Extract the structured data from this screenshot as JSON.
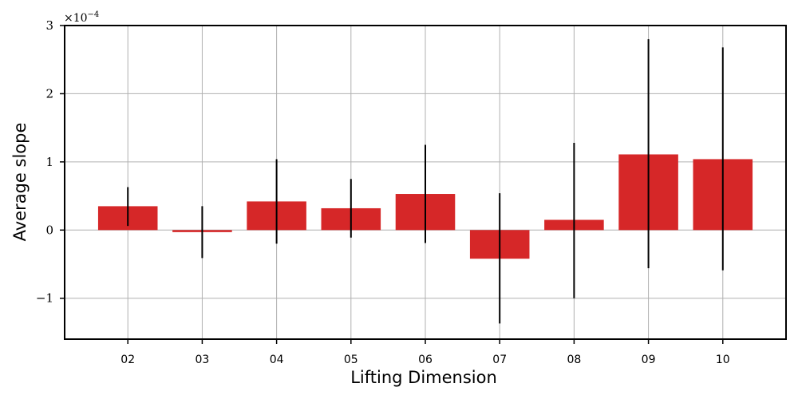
{
  "chart_data": {
    "type": "bar",
    "categories": [
      "02",
      "03",
      "04",
      "05",
      "06",
      "07",
      "08",
      "09",
      "10"
    ],
    "series": [
      {
        "values": [
          0.35,
          -0.03,
          0.42,
          0.32,
          0.53,
          -0.42,
          0.15,
          1.11,
          1.04
        ],
        "error_low": [
          0.06,
          -0.41,
          -0.2,
          -0.11,
          -0.19,
          -1.37,
          -1.0,
          -0.56,
          -0.59
        ],
        "error_high": [
          0.63,
          0.35,
          1.04,
          0.75,
          1.25,
          0.54,
          1.28,
          2.8,
          2.68
        ]
      }
    ],
    "xlabel": "Lifting Dimension",
    "ylabel": "Average slope",
    "ylim": [
      -1.6,
      3.0
    ],
    "yticks": [
      -1,
      0,
      1,
      2,
      3
    ],
    "ytick_labels": [
      "−1",
      "0",
      "1",
      "2",
      "3"
    ],
    "scale_label": "×10",
    "scale_exponent": "−4",
    "grid": true,
    "colors": {
      "bar": "#d62728",
      "error": "#000000",
      "grid": "#b0b0b0",
      "frame": "#000000"
    }
  }
}
